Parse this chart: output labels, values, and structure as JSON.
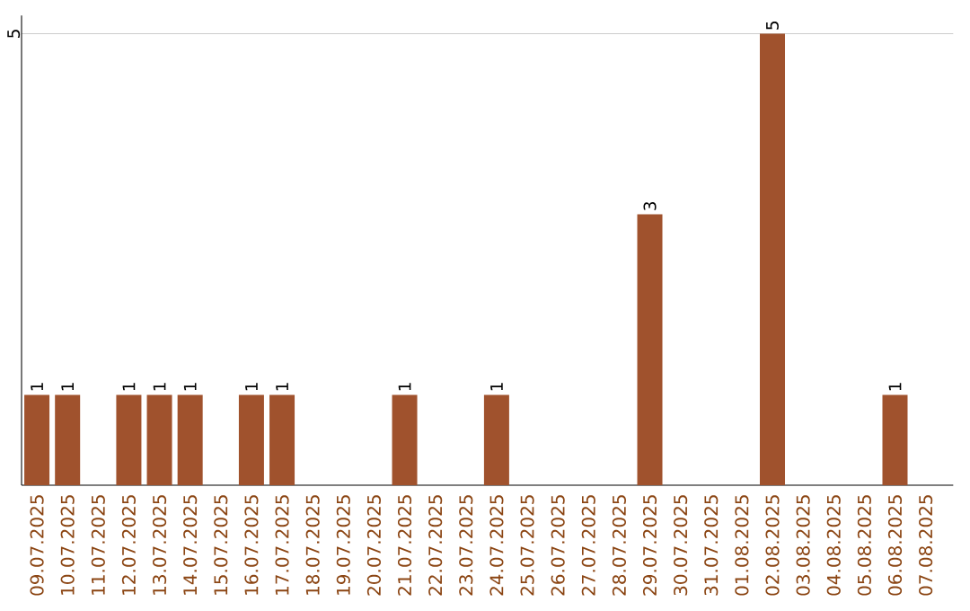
{
  "chart_data": {
    "type": "bar",
    "categories": [
      "09.07.2025",
      "10.07.2025",
      "11.07.2025",
      "12.07.2025",
      "13.07.2025",
      "14.07.2025",
      "15.07.2025",
      "16.07.2025",
      "17.07.2025",
      "18.07.2025",
      "19.07.2025",
      "20.07.2025",
      "21.07.2025",
      "22.07.2025",
      "23.07.2025",
      "24.07.2025",
      "25.07.2025",
      "26.07.2025",
      "27.07.2025",
      "28.07.2025",
      "29.07.2025",
      "30.07.2025",
      "31.07.2025",
      "01.08.2025",
      "02.08.2025",
      "03.08.2025",
      "04.08.2025",
      "05.08.2025",
      "06.08.2025",
      "07.08.2025"
    ],
    "values": [
      1,
      1,
      0,
      1,
      1,
      1,
      0,
      1,
      1,
      0,
      0,
      0,
      1,
      0,
      0,
      1,
      0,
      0,
      0,
      0,
      3,
      0,
      0,
      0,
      5,
      0,
      0,
      0,
      1,
      0
    ],
    "value_labels": [
      "1",
      "1",
      null,
      "1",
      "1",
      "1",
      null,
      "1",
      "1",
      null,
      null,
      null,
      "1",
      null,
      null,
      "1",
      null,
      null,
      null,
      null,
      "3",
      null,
      null,
      null,
      "5",
      null,
      null,
      null,
      "1",
      null
    ],
    "color": "#a0522d",
    "ylim": [
      0,
      5.2
    ],
    "yticks": [
      5
    ],
    "grid": "y"
  }
}
